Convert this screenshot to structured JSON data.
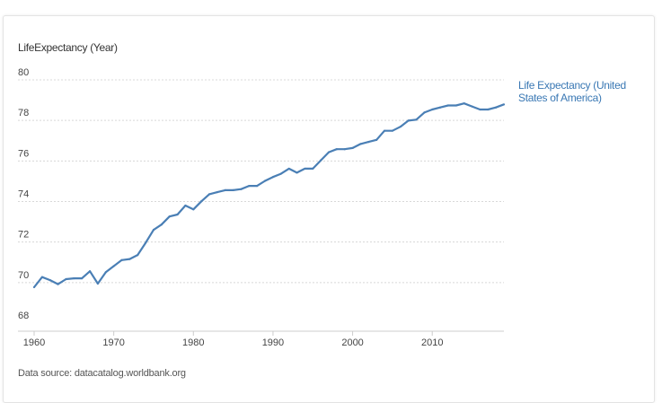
{
  "chart_data": {
    "type": "line",
    "title": "",
    "ylabel": "LifeExpectancy (Year)",
    "xlabel": "",
    "xlim": [
      1960,
      2019
    ],
    "ylim": [
      68,
      80
    ],
    "x_ticks": [
      1960,
      1970,
      1980,
      1990,
      2000,
      2010
    ],
    "y_ticks": [
      68,
      70,
      72,
      74,
      76,
      78,
      80
    ],
    "grid": true,
    "legend_position": "right",
    "series": [
      {
        "name": "Life Expectancy (United States of America)",
        "color": "#4a7fb5",
        "x": [
          1960,
          1961,
          1962,
          1963,
          1964,
          1965,
          1966,
          1967,
          1968,
          1969,
          1970,
          1971,
          1972,
          1973,
          1974,
          1975,
          1976,
          1977,
          1978,
          1979,
          1980,
          1981,
          1982,
          1983,
          1984,
          1985,
          1986,
          1987,
          1988,
          1989,
          1990,
          1991,
          1992,
          1993,
          1994,
          1995,
          1996,
          1997,
          1998,
          1999,
          2000,
          2001,
          2002,
          2003,
          2004,
          2005,
          2006,
          2007,
          2008,
          2009,
          2010,
          2011,
          2012,
          2013,
          2014,
          2015,
          2016,
          2017,
          2018,
          2019
        ],
        "values": [
          69.77,
          70.27,
          70.12,
          69.92,
          70.17,
          70.21,
          70.21,
          70.56,
          69.95,
          70.51,
          70.81,
          71.11,
          71.16,
          71.36,
          71.96,
          72.6,
          72.86,
          73.26,
          73.36,
          73.8,
          73.61,
          74.01,
          74.36,
          74.46,
          74.56,
          74.56,
          74.61,
          74.77,
          74.77,
          75.02,
          75.21,
          75.37,
          75.62,
          75.42,
          75.62,
          75.62,
          76.03,
          76.43,
          76.58,
          76.58,
          76.64,
          76.84,
          76.94,
          77.04,
          77.49,
          77.49,
          77.69,
          77.99,
          78.04,
          78.39,
          78.54,
          78.64,
          78.74,
          78.74,
          78.84,
          78.69,
          78.54,
          78.54,
          78.64,
          78.79
        ]
      }
    ],
    "source": "Data source: datacatalog.worldbank.org"
  }
}
